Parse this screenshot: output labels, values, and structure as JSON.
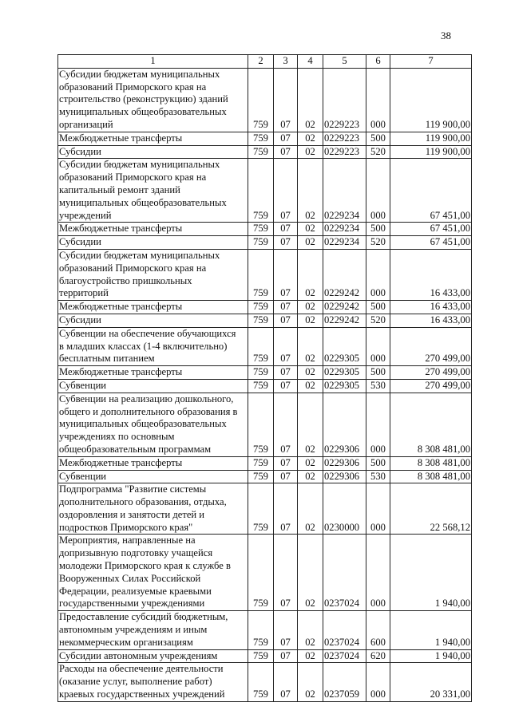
{
  "page_number": "38",
  "header": [
    "1",
    "2",
    "3",
    "4",
    "5",
    "6",
    "7"
  ],
  "rows": [
    {
      "name": "Субсидии бюджетам муниципальных\nобразований Приморского края на\nстроительство (реконструкцию) зданий\nмуниципальных общеобразовательных\nорганизаций",
      "c2": "759",
      "c3": "07",
      "c4": "02",
      "c5": "0229223",
      "c6": "000",
      "c7": "119 900,00"
    },
    {
      "name": "Межбюджетные трансферты",
      "c2": "759",
      "c3": "07",
      "c4": "02",
      "c5": "0229223",
      "c6": "500",
      "c7": "119 900,00"
    },
    {
      "name": "Субсидии",
      "c2": "759",
      "c3": "07",
      "c4": "02",
      "c5": "0229223",
      "c6": "520",
      "c7": "119 900,00"
    },
    {
      "name": "Субсидии бюджетам муниципальных\nобразований Приморского края на\nкапитальный ремонт зданий\nмуниципальных общеобразовательных\nучреждений",
      "c2": "759",
      "c3": "07",
      "c4": "02",
      "c5": "0229234",
      "c6": "000",
      "c7": "67 451,00"
    },
    {
      "name": "Межбюджетные трансферты",
      "c2": "759",
      "c3": "07",
      "c4": "02",
      "c5": "0229234",
      "c6": "500",
      "c7": "67 451,00"
    },
    {
      "name": "Субсидии",
      "c2": "759",
      "c3": "07",
      "c4": "02",
      "c5": "0229234",
      "c6": "520",
      "c7": "67 451,00"
    },
    {
      "name": "Субсидии бюджетам муниципальных\nобразований Приморского края на\nблагоустройство пришкольных\nтерриторий",
      "c2": "759",
      "c3": "07",
      "c4": "02",
      "c5": "0229242",
      "c6": "000",
      "c7": "16 433,00"
    },
    {
      "name": "Межбюджетные трансферты",
      "c2": "759",
      "c3": "07",
      "c4": "02",
      "c5": "0229242",
      "c6": "500",
      "c7": "16 433,00"
    },
    {
      "name": "Субсидии",
      "c2": "759",
      "c3": "07",
      "c4": "02",
      "c5": "0229242",
      "c6": "520",
      "c7": "16 433,00"
    },
    {
      "name": "Субвенции на обеспечение обучающихся\nв младших классах (1-4 включительно)\nбесплатным питанием",
      "c2": "759",
      "c3": "07",
      "c4": "02",
      "c5": "0229305",
      "c6": "000",
      "c7": "270 499,00"
    },
    {
      "name": "Межбюджетные трансферты",
      "c2": "759",
      "c3": "07",
      "c4": "02",
      "c5": "0229305",
      "c6": "500",
      "c7": "270 499,00"
    },
    {
      "name": "Субвенции",
      "c2": "759",
      "c3": "07",
      "c4": "02",
      "c5": "0229305",
      "c6": "530",
      "c7": "270 499,00"
    },
    {
      "name": "Субвенции на реализацию дошкольного,\nобщего и дополнительного образования в\nмуниципальных общеобразовательных\nучреждениях по основным\nобщеобразовательным программам",
      "c2": "759",
      "c3": "07",
      "c4": "02",
      "c5": "0229306",
      "c6": "000",
      "c7": "8 308 481,00"
    },
    {
      "name": "Межбюджетные трансферты",
      "c2": "759",
      "c3": "07",
      "c4": "02",
      "c5": "0229306",
      "c6": "500",
      "c7": "8 308 481,00"
    },
    {
      "name": "Субвенции",
      "c2": "759",
      "c3": "07",
      "c4": "02",
      "c5": "0229306",
      "c6": "530",
      "c7": "8 308 481,00"
    },
    {
      "name": "Подпрограмма \"Развитие системы\nдополнительного образования, отдыха,\nоздоровления и занятости детей и\nподростков Приморского края\"",
      "c2": "759",
      "c3": "07",
      "c4": "02",
      "c5": "0230000",
      "c6": "000",
      "c7": "22 568,12"
    },
    {
      "name": "Мероприятия, направленные на\nдопризывную подготовку учащейся\nмолодежи Приморского края к службе в\nВооруженных Силах Российской\nФедерации, реализуемые краевыми\nгосударственными учреждениями",
      "c2": "759",
      "c3": "07",
      "c4": "02",
      "c5": "0237024",
      "c6": "000",
      "c7": "1 940,00"
    },
    {
      "name": "Предоставление субсидий бюджетным,\nавтономным учреждениям и иным\nнекоммерческим организациям",
      "c2": "759",
      "c3": "07",
      "c4": "02",
      "c5": "0237024",
      "c6": "600",
      "c7": "1 940,00"
    },
    {
      "name": "Субсидии автономным учреждениям",
      "c2": "759",
      "c3": "07",
      "c4": "02",
      "c5": "0237024",
      "c6": "620",
      "c7": "1 940,00"
    },
    {
      "name": "Расходы на обеспечение деятельности\n(оказание услуг, выполнение работ)\nкраевых государственных учреждений",
      "c2": "759",
      "c3": "07",
      "c4": "02",
      "c5": "0237059",
      "c6": "000",
      "c7": "20 331,00"
    }
  ]
}
